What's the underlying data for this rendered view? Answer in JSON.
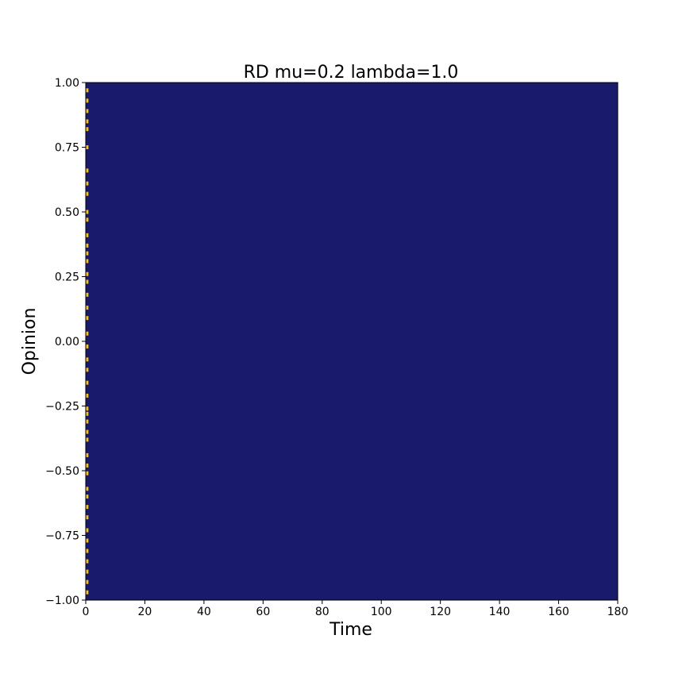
{
  "chart_data": {
    "type": "heatmap",
    "title": "RD mu=0.2 lambda=1.0",
    "xlabel": "Time",
    "ylabel": "Opinion",
    "xlim": [
      0,
      180
    ],
    "ylim": [
      -1.0,
      1.0
    ],
    "x_ticks": [
      0,
      20,
      40,
      60,
      80,
      100,
      120,
      140,
      160,
      180
    ],
    "x_tick_labels": [
      "0",
      "20",
      "40",
      "60",
      "80",
      "100",
      "120",
      "140",
      "160",
      "180"
    ],
    "y_ticks": [
      -1.0,
      -0.75,
      -0.5,
      -0.25,
      0.0,
      0.25,
      0.5,
      0.75,
      1.0
    ],
    "y_tick_labels": [
      "−1.00",
      "−0.75",
      "−0.50",
      "−0.25",
      "0.00",
      "0.25",
      "0.50",
      "0.75",
      "1.00"
    ],
    "grid": false,
    "legend": "none",
    "colors": {
      "background": "#1a1a6b",
      "highlight": "#f2c230"
    },
    "highlight_column_time": 0.5,
    "highlight_opinions": [
      0.97,
      0.93,
      0.89,
      0.85,
      0.82,
      0.75,
      0.66,
      0.61,
      0.57,
      0.5,
      0.47,
      0.41,
      0.37,
      0.34,
      0.31,
      0.26,
      0.23,
      0.18,
      0.13,
      0.09,
      0.03,
      -0.02,
      -0.07,
      -0.11,
      -0.16,
      -0.21,
      -0.26,
      -0.28,
      -0.31,
      -0.35,
      -0.38,
      -0.44,
      -0.48,
      -0.51,
      -0.57,
      -0.6,
      -0.64,
      -0.68,
      -0.73,
      -0.77,
      -0.81,
      -0.85,
      -0.89,
      -0.93,
      -0.97
    ]
  }
}
